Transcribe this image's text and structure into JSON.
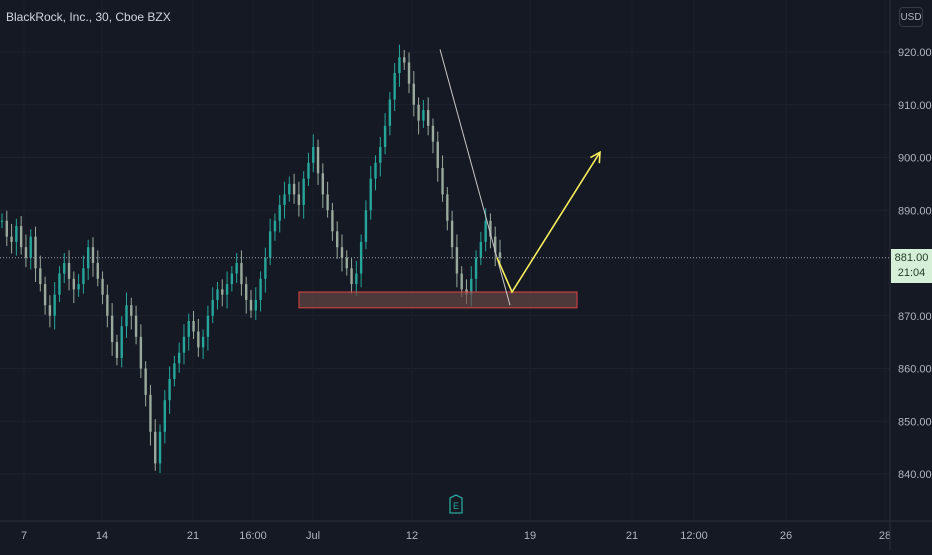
{
  "header": {
    "symbol_title": "BlackRock, Inc., 30, Cboe BZX",
    "currency": "USD"
  },
  "price_tag": {
    "price": "881.00",
    "countdown": "21:04"
  },
  "earnings_marker": {
    "label": "E"
  },
  "colors": {
    "background": "#151924",
    "up_candle": "#26a69a",
    "down_candle": "#9aa99b",
    "projection_arrow": "#f7ee5c",
    "trend_line": "#c8c8c8",
    "zone_border": "#e04444",
    "zone_fill": "#6b4a46",
    "price_line": "#9aa0ab"
  },
  "chart_data": {
    "type": "candlestick",
    "y_axis": {
      "ticks": [
        "920.00",
        "910.00",
        "900.00",
        "890.00",
        "881.00",
        "870.00",
        "860.00",
        "850.00",
        "840.00"
      ],
      "range": [
        836,
        928
      ],
      "position": "right"
    },
    "x_axis": {
      "ticks": [
        "7",
        "14",
        "21",
        "16:00",
        "Jul",
        "12",
        "19",
        "21",
        "12:00",
        "26",
        "28"
      ]
    },
    "current_price": 881.0,
    "grid": true,
    "drawings": {
      "support_zone": {
        "top": 874.5,
        "bottom": 871.5
      },
      "trend_line": {
        "from": 920.5,
        "to": 872
      },
      "projection": {
        "from": 881,
        "low": 874.5,
        "to": 901
      }
    },
    "series": [
      {
        "candles_approx": [
          888,
          885,
          884,
          887,
          883,
          881,
          885,
          879,
          876,
          872,
          870,
          874,
          878,
          880,
          877,
          875,
          876,
          879,
          883,
          880,
          877,
          874,
          870,
          865,
          862,
          868,
          872,
          870,
          866,
          860,
          855,
          848,
          842,
          848,
          854,
          858,
          861,
          863,
          866,
          869,
          867,
          864,
          866,
          870,
          873,
          875,
          874,
          876,
          878,
          880,
          876,
          873,
          871,
          873,
          877,
          881,
          886,
          888,
          891,
          893,
          895,
          893,
          891,
          896,
          899,
          902,
          897,
          893,
          890,
          886,
          883,
          881,
          879,
          876,
          878,
          884,
          890,
          896,
          899,
          902,
          906,
          911,
          916,
          919,
          918,
          914,
          910,
          907,
          909,
          906,
          903,
          898,
          893,
          888,
          883,
          878,
          875,
          874,
          877,
          881,
          884,
          888,
          885,
          882,
          881
        ]
      }
    ]
  }
}
